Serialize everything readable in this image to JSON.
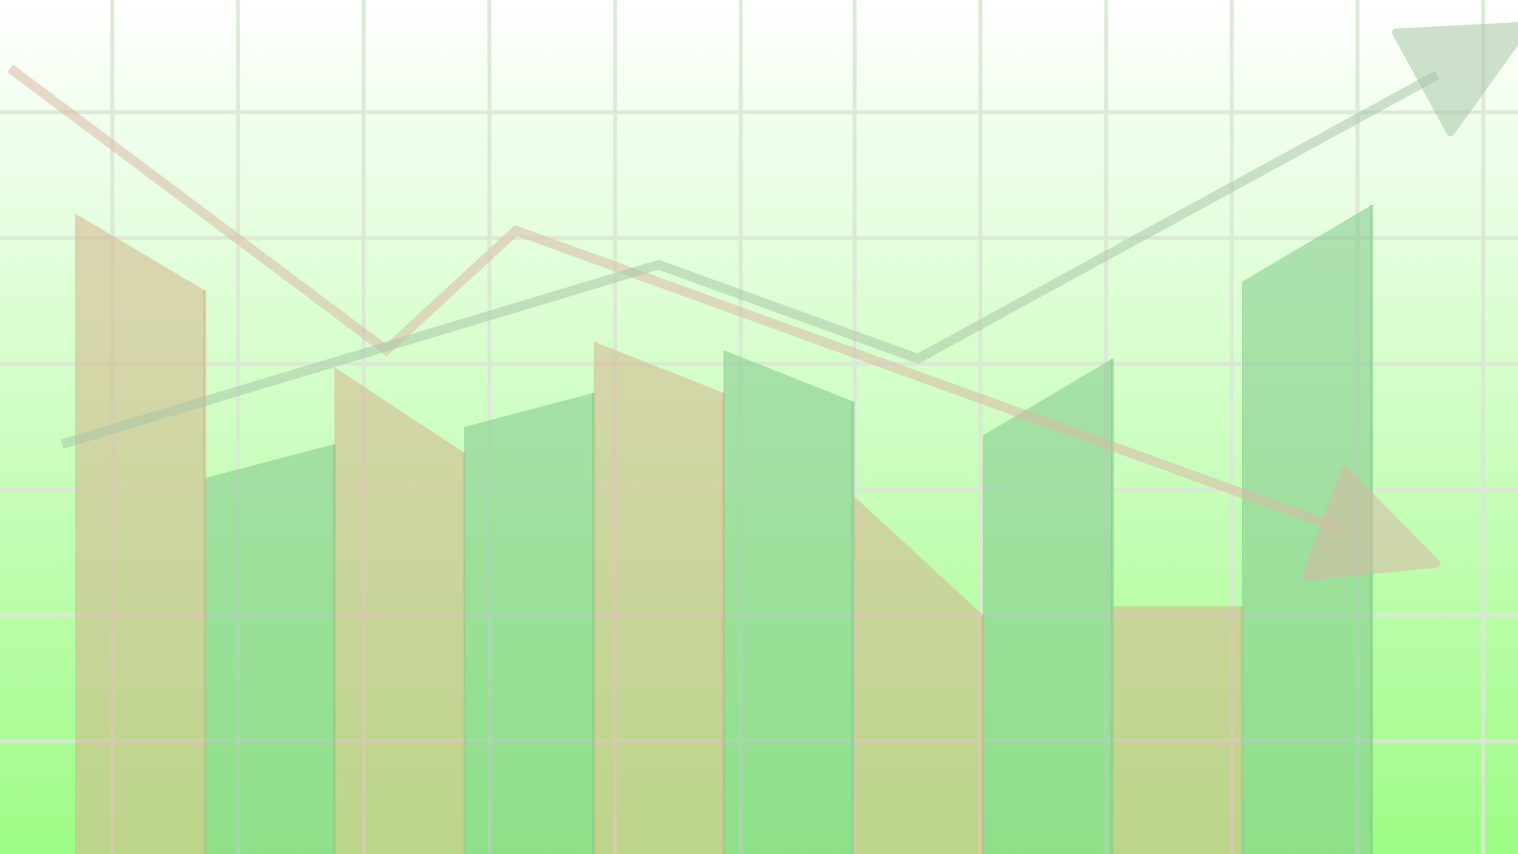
{
  "chart_data": {
    "type": "bar",
    "title": "",
    "xlabel": "",
    "ylabel": "",
    "grid": true,
    "legend": "none",
    "ylim": [
      0,
      100
    ],
    "x_count": 10,
    "bar_series": [
      {
        "name": "",
        "color": "#d4b48c",
        "values": [
          [
            75,
            66
          ],
          [
            57,
            47
          ],
          [
            60,
            54
          ],
          [
            42,
            28
          ],
          [
            29,
            29
          ]
        ]
      },
      {
        "name": "",
        "color": "#7fc98a",
        "values": [
          [
            44,
            48
          ],
          [
            50,
            54
          ],
          [
            59,
            53
          ],
          [
            49,
            58
          ],
          [
            67,
            76
          ]
        ]
      }
    ],
    "line_series": [
      {
        "name": "",
        "color": "#d8b9a6",
        "direction": "down",
        "x": [
          -0.5,
          2.4,
          3.4,
          10.5
        ],
        "y": [
          92,
          59,
          73,
          34
        ]
      },
      {
        "name": "",
        "color": "#a9c7a8",
        "direction": "up",
        "x": [
          -0.1,
          4.5,
          6.5,
          11.2
        ],
        "y": [
          48,
          69,
          58,
          97
        ]
      }
    ],
    "background": {
      "top": "#ffffff",
      "bottom": "#9efc86"
    },
    "grid_color": "#dbe8d6"
  }
}
